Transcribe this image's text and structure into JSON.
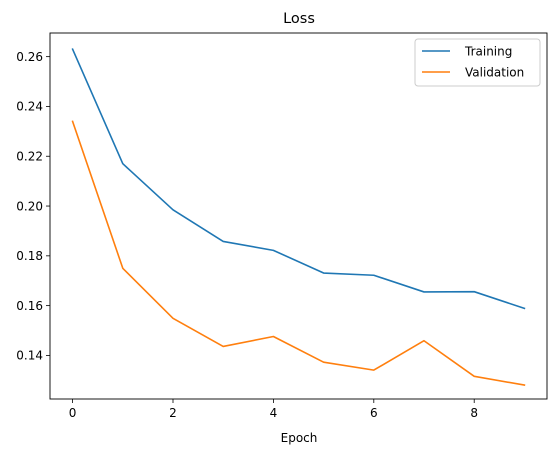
{
  "chart_data": {
    "type": "line",
    "title": "Loss",
    "xlabel": "Epoch",
    "ylabel": "",
    "x": [
      0,
      1,
      2,
      3,
      4,
      5,
      6,
      7,
      8,
      9
    ],
    "xlim": [
      -0.45,
      9.45
    ],
    "ylim": [
      0.1225,
      0.2695
    ],
    "xticks": [
      0,
      2,
      4,
      6,
      8
    ],
    "xtick_labels": [
      "0",
      "2",
      "4",
      "6",
      "8"
    ],
    "yticks": [
      0.14,
      0.16,
      0.18,
      0.2,
      0.22,
      0.24,
      0.26
    ],
    "ytick_labels": [
      "0.14",
      "0.16",
      "0.18",
      "0.20",
      "0.22",
      "0.24",
      "0.26"
    ],
    "grid": false,
    "legend_position": "top-right",
    "series": [
      {
        "name": "Training",
        "color": "#1f77b4",
        "values": [
          0.263,
          0.217,
          0.1985,
          0.1858,
          0.1822,
          0.1731,
          0.1722,
          0.1655,
          0.1656,
          0.1589
        ]
      },
      {
        "name": "Validation",
        "color": "#ff7f0e",
        "values": [
          0.234,
          0.175,
          0.1549,
          0.1436,
          0.1476,
          0.1373,
          0.1341,
          0.1459,
          0.1316,
          0.1281
        ]
      }
    ]
  }
}
